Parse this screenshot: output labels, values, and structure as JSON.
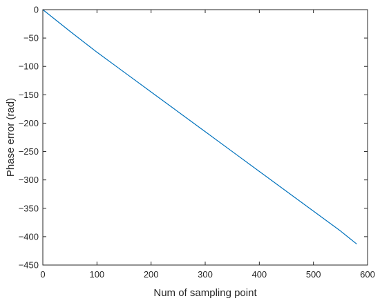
{
  "chart_data": {
    "type": "line",
    "title": "",
    "xlabel": "Num of sampling point",
    "ylabel": "Phase error (rad)",
    "xlim": [
      0,
      600
    ],
    "ylim": [
      -450,
      0
    ],
    "xticks": [
      0,
      100,
      200,
      300,
      400,
      500,
      600
    ],
    "yticks": [
      0,
      -50,
      -100,
      -150,
      -200,
      -250,
      -300,
      -350,
      -400,
      -450
    ],
    "grid": false,
    "legend": "none",
    "series": [
      {
        "color": "#0072BD",
        "x": [
          0,
          50,
          100,
          150,
          200,
          250,
          300,
          350,
          400,
          450,
          500,
          550,
          580
        ],
        "y": [
          0,
          -38,
          -75,
          -110,
          -145,
          -180,
          -215,
          -250,
          -285,
          -320,
          -355,
          -390,
          -413
        ]
      }
    ]
  },
  "colors": {
    "axis": "#262626",
    "background": "#ffffff"
  }
}
